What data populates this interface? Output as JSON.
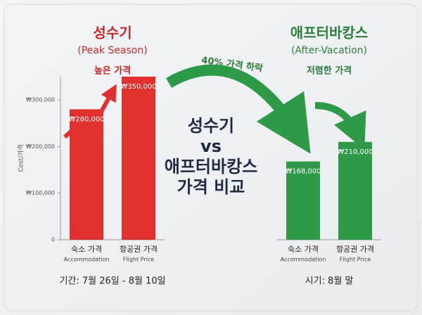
{
  "headline": [
    "성수기",
    "vs",
    "애프터바캉스",
    "가격 비교"
  ],
  "arrow_label": "40% 가격 하락",
  "chart_data": [
    {
      "type": "bar",
      "title": "성수기",
      "subtitle": "(Peak Season)",
      "annotation": "높은 가격",
      "ylabel": "Cost/가격",
      "categories": [
        "숙소 가격",
        "항공권 가격"
      ],
      "category_subtitles": [
        "Accommodation",
        "Flight Price"
      ],
      "values": [
        280000,
        350000
      ],
      "value_labels": [
        "₩280,000",
        "₩350,000"
      ],
      "color": "#e0312f",
      "ylim": [
        0,
        350000
      ],
      "yticks": [
        0,
        {
          "value": 100000,
          "label": "₩100,000"
        },
        {
          "value": 200000,
          "label": "₩200,000"
        },
        {
          "value": 300000,
          "label": "₩300,000"
        }
      ],
      "footnote": "기간: 7월 26일 - 8월 10일"
    },
    {
      "type": "bar",
      "title": "애프터바캉스",
      "subtitle": "(After-Vacation)",
      "annotation": "저렴한 가격",
      "categories": [
        "숙소 가격",
        "항공권 가격"
      ],
      "category_subtitles": [
        "Accommodation",
        "Flight Price"
      ],
      "values": [
        168000,
        210000
      ],
      "value_labels": [
        "₩168,000",
        "₩210,000"
      ],
      "color": "#2e9a48",
      "ylim": [
        0,
        350000
      ],
      "footnote": "시기: 8월 말"
    }
  ]
}
